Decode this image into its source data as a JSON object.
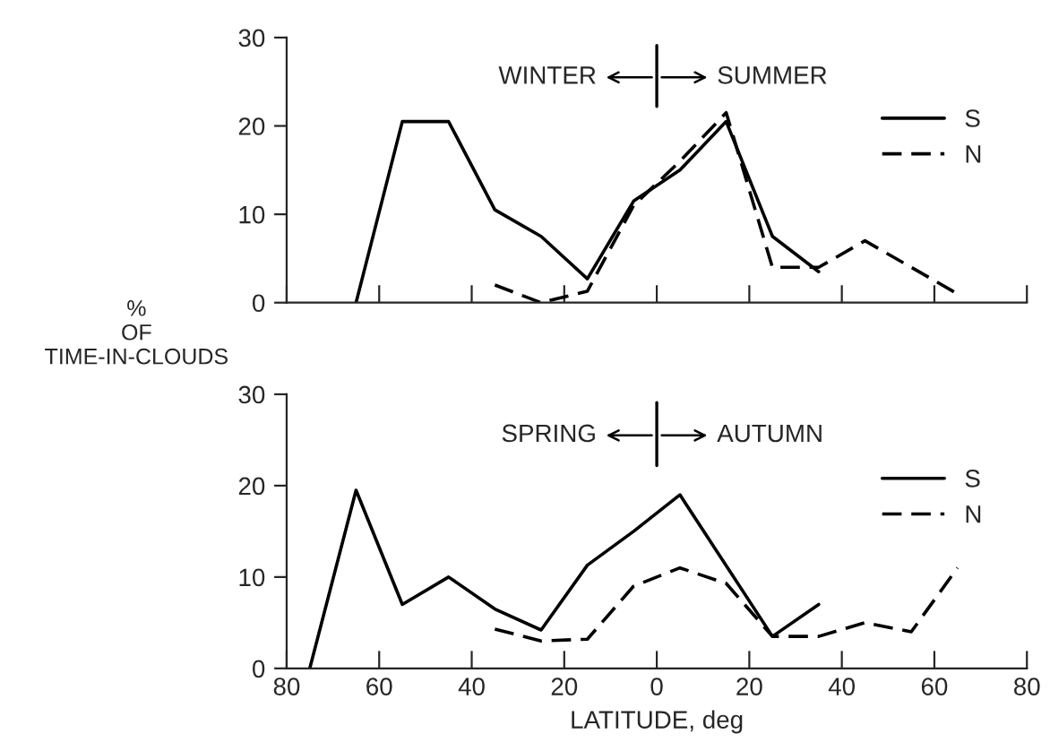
{
  "chart_data": [
    {
      "type": "line",
      "ylabel": "%\nOF\nTIME-IN-CLOUDS",
      "annotations": [
        "WINTER",
        "SUMMER"
      ],
      "xlim": [
        -80,
        80
      ],
      "xticks": [
        {
          "value": -80,
          "label": null
        },
        {
          "value": -60,
          "label": null
        },
        {
          "value": -40,
          "label": null
        },
        {
          "value": -20,
          "label": null
        },
        {
          "value": 0,
          "label": null
        },
        {
          "value": 20,
          "label": null
        },
        {
          "value": 40,
          "label": null
        },
        {
          "value": 60,
          "label": null
        },
        {
          "value": 80,
          "label": null
        }
      ],
      "ylim": [
        0,
        30
      ],
      "yticks": [
        0,
        10,
        20,
        30
      ],
      "tick_labels": "y",
      "legend": "right",
      "grid": false,
      "series": [
        {
          "name": "S",
          "color": "#000000",
          "line_style": "solid",
          "x": [
            -65,
            -55,
            -45,
            -35,
            -25,
            -15,
            -5,
            5,
            15,
            25,
            35
          ],
          "values": [
            0,
            20.5,
            20.5,
            10.5,
            7.5,
            2.7,
            11.5,
            15,
            20.5,
            7.5,
            3.5
          ]
        },
        {
          "name": "N",
          "color": "#000000",
          "line_style": "dashed",
          "x": [
            -35,
            -25,
            -15,
            -5,
            5,
            15,
            25,
            35,
            45,
            55,
            65
          ],
          "values": [
            2,
            0,
            1.3,
            11,
            16,
            21.5,
            4,
            4,
            7,
            4,
            1
          ]
        }
      ]
    },
    {
      "type": "line",
      "xlabel": "LATITUDE, deg",
      "annotations": [
        "SPRING",
        "AUTUMN"
      ],
      "xlim": [
        -80,
        80
      ],
      "xticks": [
        {
          "value": -80,
          "label": "80"
        },
        {
          "value": -60,
          "label": "60"
        },
        {
          "value": -40,
          "label": "40"
        },
        {
          "value": -20,
          "label": "20"
        },
        0,
        20,
        40,
        60,
        80
      ],
      "ylim": [
        0,
        30
      ],
      "yticks": [
        0,
        10,
        20,
        30
      ],
      "legend": "right",
      "grid": false,
      "series": [
        {
          "name": "S",
          "color": "#000000",
          "line_style": "solid",
          "x": [
            -75,
            -65,
            -55,
            -45,
            -35,
            -25,
            -15,
            -5,
            5,
            25,
            35
          ],
          "values": [
            0,
            19.5,
            7,
            10,
            6.5,
            4.2,
            11.3,
            15,
            19,
            3.5,
            7
          ]
        },
        {
          "name": "N",
          "color": "#000000",
          "line_style": "dashed",
          "x": [
            -35,
            -25,
            -15,
            -5,
            5,
            15,
            25,
            35,
            45,
            55,
            65
          ],
          "values": [
            4.3,
            3,
            3.2,
            9,
            11,
            9.3,
            3.5,
            3.5,
            5,
            4,
            11
          ]
        }
      ]
    }
  ]
}
